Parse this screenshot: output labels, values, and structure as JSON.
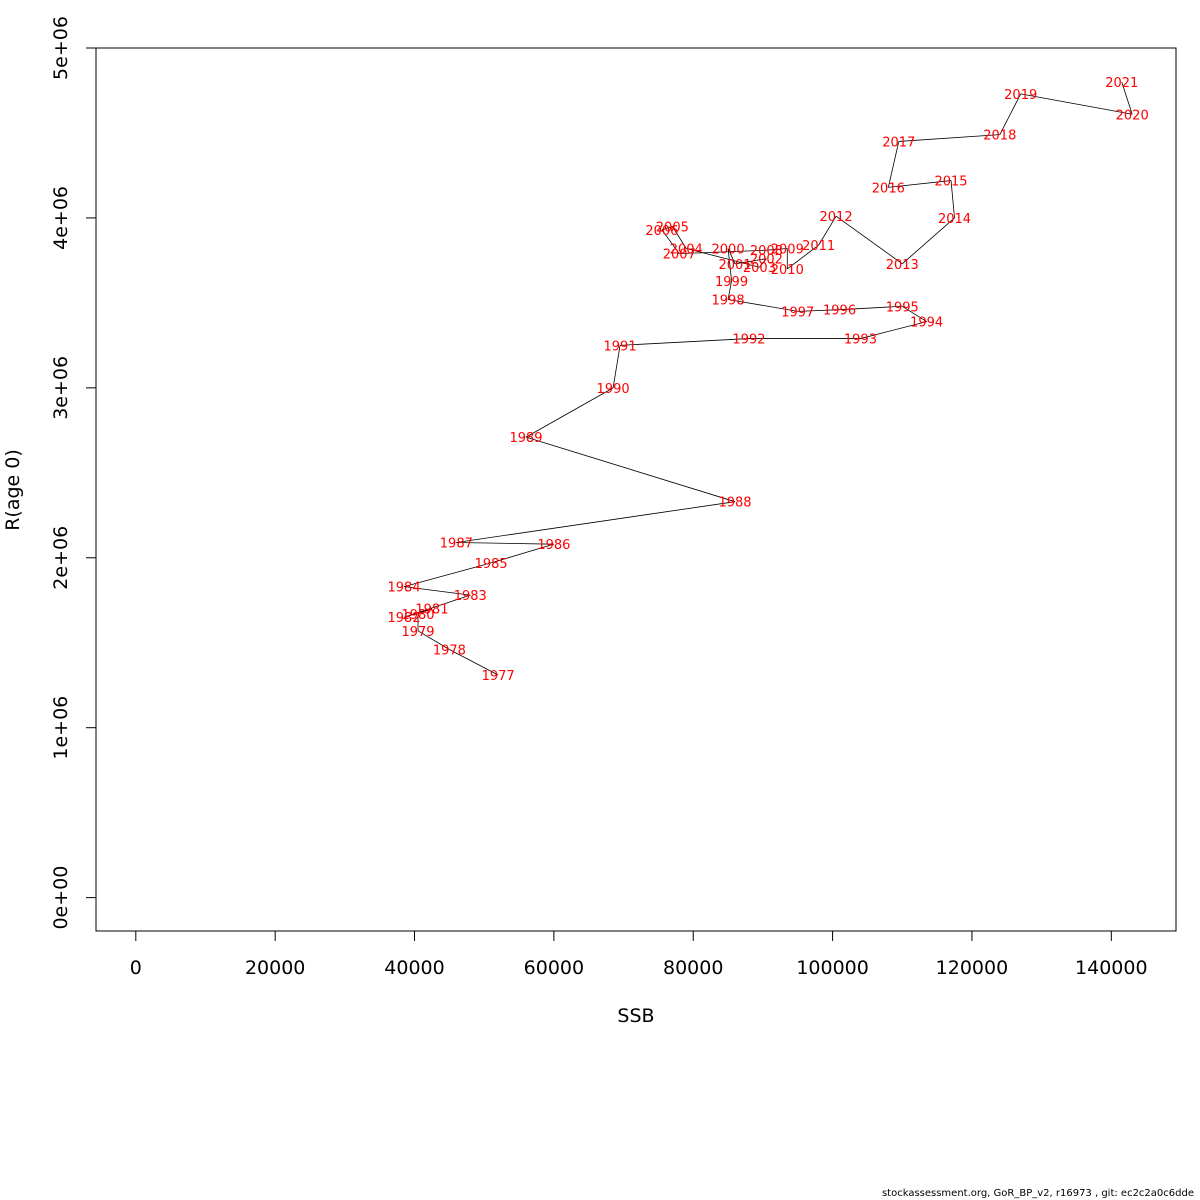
{
  "chart_data": {
    "type": "line",
    "xlabel": "SSB",
    "ylabel": "R(age 0)",
    "xlim": [
      -5714,
      149286
    ],
    "ylim": [
      -196471,
      5000000
    ],
    "x_ticks": [
      0,
      20000,
      40000,
      60000,
      80000,
      100000,
      120000,
      140000
    ],
    "x_tick_labels": [
      "0",
      "20000",
      "40000",
      "60000",
      "80000",
      "100000",
      "120000",
      "140000"
    ],
    "y_ticks": [
      0,
      1000000,
      2000000,
      3000000,
      4000000,
      5000000
    ],
    "y_tick_labels": [
      "0e+00",
      "1e+06",
      "2e+06",
      "3e+06",
      "4e+06",
      "5e+06"
    ],
    "grid": false,
    "legend": "none",
    "line_color": "#000000",
    "label_color": "#ff0000",
    "points": [
      {
        "year": "1977",
        "x": 52000,
        "y": 1310000
      },
      {
        "year": "1978",
        "x": 45000,
        "y": 1460000
      },
      {
        "year": "1979",
        "x": 40500,
        "y": 1570000
      },
      {
        "year": "1980",
        "x": 40500,
        "y": 1670000
      },
      {
        "year": "1981",
        "x": 42500,
        "y": 1700000
      },
      {
        "year": "1982",
        "x": 38500,
        "y": 1650000
      },
      {
        "year": "1983",
        "x": 48000,
        "y": 1780000
      },
      {
        "year": "1984",
        "x": 38500,
        "y": 1830000
      },
      {
        "year": "1985",
        "x": 51000,
        "y": 1970000
      },
      {
        "year": "1986",
        "x": 60000,
        "y": 2080000
      },
      {
        "year": "1987",
        "x": 46000,
        "y": 2090000
      },
      {
        "year": "1988",
        "x": 86000,
        "y": 2330000
      },
      {
        "year": "1989",
        "x": 56000,
        "y": 2710000
      },
      {
        "year": "1990",
        "x": 68500,
        "y": 3000000
      },
      {
        "year": "1991",
        "x": 69500,
        "y": 3250000
      },
      {
        "year": "1992",
        "x": 88000,
        "y": 3290000
      },
      {
        "year": "1993",
        "x": 104000,
        "y": 3290000
      },
      {
        "year": "1994",
        "x": 113500,
        "y": 3390000
      },
      {
        "year": "1995",
        "x": 110000,
        "y": 3480000
      },
      {
        "year": "1996",
        "x": 101000,
        "y": 3460000
      },
      {
        "year": "1997",
        "x": 95000,
        "y": 3450000
      },
      {
        "year": "1998",
        "x": 85000,
        "y": 3520000
      },
      {
        "year": "1999",
        "x": 85500,
        "y": 3630000
      },
      {
        "year": "2000",
        "x": 85000,
        "y": 3820000
      },
      {
        "year": "2001",
        "x": 86000,
        "y": 3730000
      },
      {
        "year": "2002",
        "x": 90500,
        "y": 3760000
      },
      {
        "year": "2003",
        "x": 89500,
        "y": 3710000
      },
      {
        "year": "2004",
        "x": 79000,
        "y": 3820000
      },
      {
        "year": "2005",
        "x": 77000,
        "y": 3950000
      },
      {
        "year": "2006",
        "x": 75500,
        "y": 3930000
      },
      {
        "year": "2007",
        "x": 78000,
        "y": 3790000
      },
      {
        "year": "2008",
        "x": 90500,
        "y": 3810000
      },
      {
        "year": "2009",
        "x": 93500,
        "y": 3820000
      },
      {
        "year": "2010",
        "x": 93500,
        "y": 3700000
      },
      {
        "year": "2011",
        "x": 98000,
        "y": 3840000
      },
      {
        "year": "2012",
        "x": 100500,
        "y": 4010000
      },
      {
        "year": "2013",
        "x": 110000,
        "y": 3730000
      },
      {
        "year": "2014",
        "x": 117500,
        "y": 4000000
      },
      {
        "year": "2015",
        "x": 117000,
        "y": 4220000
      },
      {
        "year": "2016",
        "x": 108000,
        "y": 4180000
      },
      {
        "year": "2017",
        "x": 109500,
        "y": 4450000
      },
      {
        "year": "2018",
        "x": 124000,
        "y": 4490000
      },
      {
        "year": "2019",
        "x": 127000,
        "y": 4730000
      },
      {
        "year": "2020",
        "x": 143000,
        "y": 4610000
      },
      {
        "year": "2021",
        "x": 141500,
        "y": 4800000
      }
    ]
  },
  "footer": "stockassessment.org, GoR_BP_v2, r16973 , git: ec2c2a0c6dde"
}
